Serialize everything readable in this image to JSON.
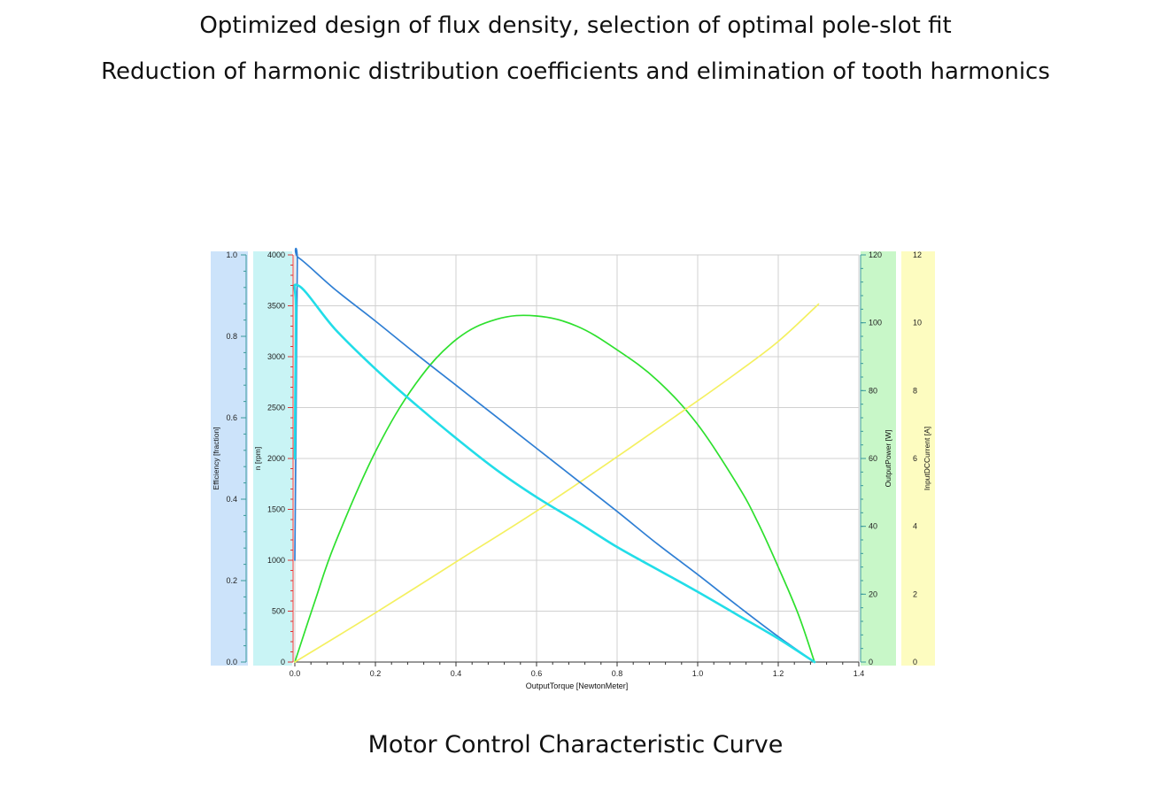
{
  "header": {
    "line1": "Optimized design of flux density, selection of optimal pole-slot fit",
    "line2": "Reduction of harmonic distribution coefficients and elimination of tooth harmonics"
  },
  "caption": "Motor Control Characteristic Curve",
  "chart_data": {
    "type": "line",
    "grid": true,
    "x_axis": {
      "label": "OutputTorque [NewtonMeter]",
      "range": [
        0,
        1.4
      ],
      "ticks": [
        0.0,
        0.2,
        0.4,
        0.6,
        0.8,
        1.0,
        1.2,
        1.4
      ],
      "tick_labels": [
        "0.0",
        "0.2",
        "0.4",
        "0.6",
        "0.8",
        "1.0",
        "1.2",
        "1.4"
      ]
    },
    "y_axes": [
      {
        "id": "efficiency",
        "label": "Efficiency [fraction]",
        "side": "left",
        "range": [
          0,
          1.0
        ],
        "ticks": [
          0,
          0.2,
          0.4,
          0.6,
          0.8,
          1.0
        ],
        "tick_labels": [
          "0.0",
          "0.2",
          "0.4",
          "0.6",
          "0.8",
          "1.0"
        ],
        "band_color": "#cce3fa"
      },
      {
        "id": "speed",
        "label": "n [rpm]",
        "side": "left",
        "range": [
          0,
          4000
        ],
        "ticks": [
          0,
          500,
          1000,
          1500,
          2000,
          2500,
          3000,
          3500,
          4000
        ],
        "tick_labels": [
          "0",
          "500",
          "1000",
          "1500",
          "2000",
          "2500",
          "3000",
          "3500",
          "4000"
        ],
        "band_color": "#c9f4f5"
      },
      {
        "id": "power",
        "label": "OutputPower [W]",
        "side": "right",
        "range": [
          0,
          120
        ],
        "ticks": [
          0,
          20,
          40,
          60,
          80,
          100,
          120
        ],
        "tick_labels": [
          "0",
          "20",
          "40",
          "60",
          "80",
          "100",
          "120"
        ],
        "band_color": "#c8f7c8"
      },
      {
        "id": "current",
        "label": "InputDCCurrent [A]",
        "side": "right",
        "range": [
          0,
          12
        ],
        "ticks": [
          0,
          2,
          4,
          6,
          8,
          10,
          12
        ],
        "tick_labels": [
          "0",
          "2",
          "4",
          "6",
          "8",
          "10",
          "12"
        ],
        "band_color": "#fdfcc0"
      }
    ],
    "series": [
      {
        "axis": "speed",
        "color": "#2f7fd4",
        "x": [
          0.0,
          0.003,
          0.006,
          0.01,
          0.1,
          0.2,
          0.3,
          0.4,
          0.5,
          0.6,
          0.7,
          0.8,
          0.9,
          1.0,
          1.1,
          1.2,
          1.29
        ],
        "y": [
          1000,
          2350,
          3900,
          3970,
          3660,
          3350,
          3030,
          2720,
          2410,
          2100,
          1790,
          1480,
          1160,
          860,
          550,
          250,
          0
        ]
      },
      {
        "axis": "speed",
        "color": "#22dde8",
        "x": [
          0.0,
          0.003,
          0.008,
          0.1,
          0.2,
          0.3,
          0.4,
          0.5,
          0.6,
          0.7,
          0.8,
          0.9,
          1.0,
          1.1,
          1.2,
          1.29
        ],
        "y": [
          2000,
          3400,
          3700,
          3270,
          2880,
          2530,
          2200,
          1890,
          1620,
          1380,
          1130,
          910,
          690,
          460,
          230,
          0
        ]
      },
      {
        "axis": "power",
        "color": "#2ee02e",
        "x": [
          0.0,
          0.05,
          0.1,
          0.2,
          0.3,
          0.4,
          0.5,
          0.6,
          0.7,
          0.8,
          0.9,
          1.0,
          1.1,
          1.15,
          1.2,
          1.25,
          1.29
        ],
        "y": [
          0,
          18,
          35,
          62,
          82,
          95,
          101,
          102,
          99,
          92,
          83,
          70,
          52,
          41,
          28,
          14,
          0
        ]
      },
      {
        "axis": "current",
        "color": "#f4f060",
        "x": [
          0.0,
          0.2,
          0.4,
          0.6,
          0.8,
          1.0,
          1.1,
          1.2,
          1.3
        ],
        "y": [
          0.0,
          1.45,
          2.95,
          4.45,
          6.05,
          7.7,
          8.55,
          9.45,
          10.55
        ]
      }
    ]
  }
}
